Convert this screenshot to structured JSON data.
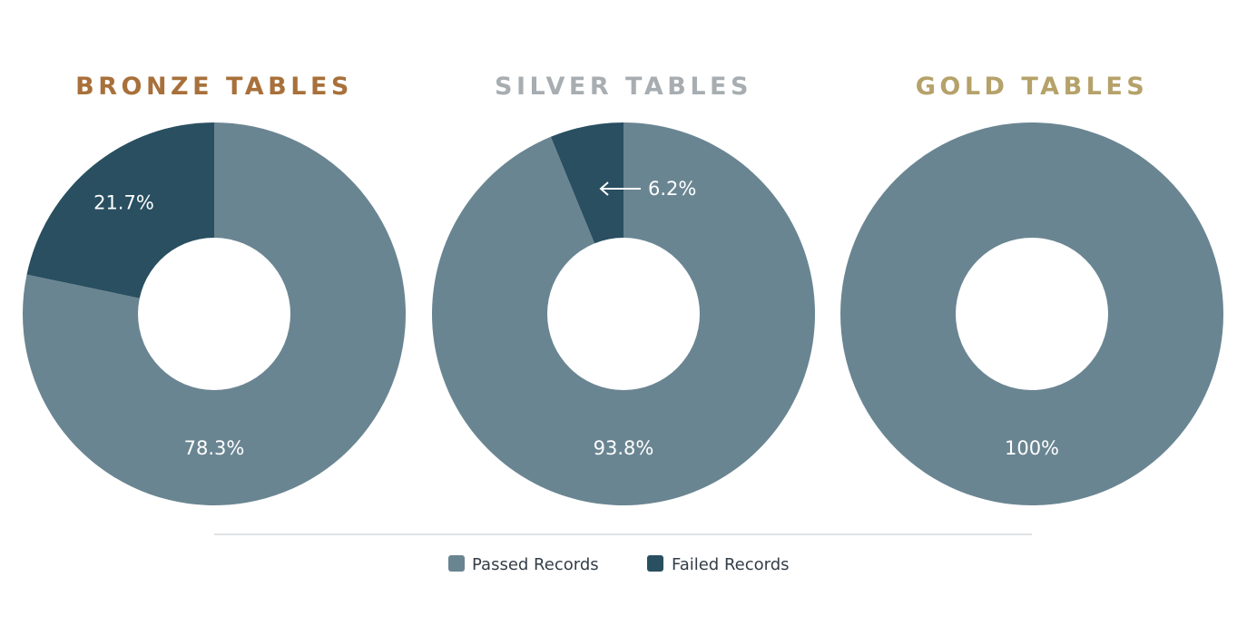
{
  "colors": {
    "passed": "#6a8592",
    "failed": "#294f61",
    "divider": "#d6dadd",
    "arrow": "#ffffff"
  },
  "legend": {
    "passed_label": "Passed Records",
    "failed_label": "Failed Records"
  },
  "chart_data": [
    {
      "type": "pie",
      "variant": "donut",
      "title": "BRONZE TABLES",
      "title_color": "#a8703a",
      "slices": [
        {
          "name": "Passed Records",
          "value": 78.3,
          "label": "78.3%"
        },
        {
          "name": "Failed Records",
          "value": 21.7,
          "label": "21.7%"
        }
      ]
    },
    {
      "type": "pie",
      "variant": "donut",
      "title": "SILVER TABLES",
      "title_color": "#a7adb1",
      "slices": [
        {
          "name": "Passed Records",
          "value": 93.8,
          "label": "93.8%"
        },
        {
          "name": "Failed Records",
          "value": 6.2,
          "label": "6.2%",
          "callout": "arrow-left"
        }
      ]
    },
    {
      "type": "pie",
      "variant": "donut",
      "title": "GOLD TABLES",
      "title_color": "#b5a26a",
      "slices": [
        {
          "name": "Passed Records",
          "value": 100,
          "label": "100%"
        }
      ]
    }
  ]
}
